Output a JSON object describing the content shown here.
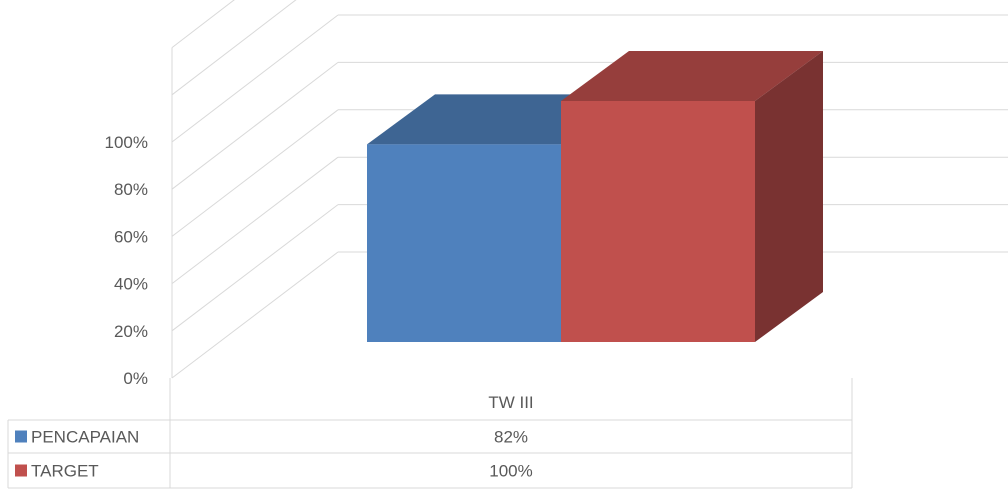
{
  "chart_data": {
    "type": "bar",
    "style": "3d-clustered-column-with-data-table",
    "categories": [
      "TW III"
    ],
    "series": [
      {
        "name": "PENCAPAIAN",
        "values": [
          82
        ],
        "display": [
          "82%"
        ],
        "color": "#4F81BD"
      },
      {
        "name": "TARGET",
        "values": [
          100
        ],
        "display": [
          "100%"
        ],
        "color": "#C0504D"
      }
    ],
    "yticks": [
      "0%",
      "20%",
      "40%",
      "60%",
      "80%",
      "100%"
    ],
    "ylim": [
      0,
      100
    ],
    "grid": true,
    "legend": "data-table-left"
  }
}
